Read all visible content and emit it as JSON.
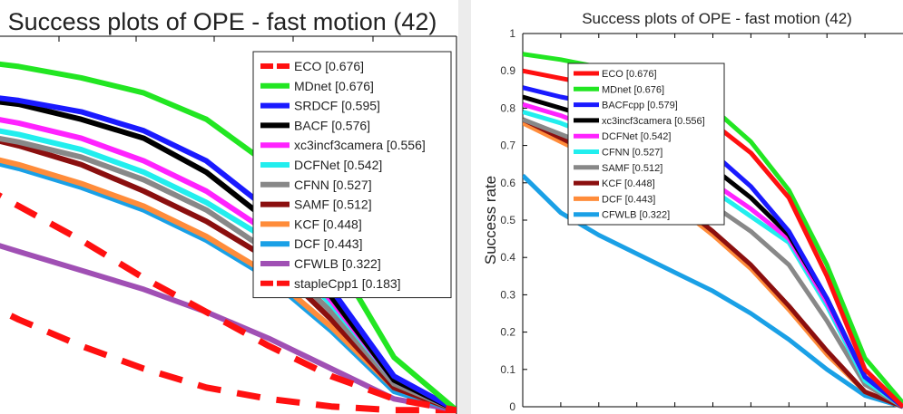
{
  "chart_data": [
    {
      "type": "line",
      "title": "Success plots of OPE - fast motion (42)",
      "xlabel": "",
      "ylabel": "",
      "legend_position": "top-right",
      "grid": false,
      "series": [
        {
          "name": "ECO [0.676]",
          "color": "#ff1010",
          "dash": true,
          "x": [
            0.0,
            0.1,
            0.2,
            0.3,
            0.4,
            0.5,
            0.6,
            0.7,
            0.8,
            0.9,
            1.0
          ],
          "values": [
            0.74,
            0.7,
            0.63,
            0.54,
            0.45,
            0.35,
            0.26,
            0.17,
            0.09,
            0.03,
            0.0
          ]
        },
        {
          "name": "MDnet [0.676]",
          "color": "#22e622",
          "x": [
            0.0,
            0.1,
            0.2,
            0.3,
            0.4,
            0.5,
            0.6,
            0.7,
            0.8,
            0.9,
            1.0
          ],
          "values": [
            0.95,
            0.94,
            0.93,
            0.91,
            0.88,
            0.84,
            0.77,
            0.65,
            0.42,
            0.14,
            0.0
          ]
        },
        {
          "name": "SRDCF [0.595]",
          "color": "#1a1aff",
          "x": [
            0.0,
            0.1,
            0.2,
            0.3,
            0.4,
            0.5,
            0.6,
            0.7,
            0.8,
            0.9,
            1.0
          ],
          "values": [
            0.86,
            0.85,
            0.84,
            0.82,
            0.79,
            0.74,
            0.66,
            0.53,
            0.32,
            0.09,
            0.0
          ]
        },
        {
          "name": "BACF [0.576]",
          "color": "#000000",
          "x": [
            0.0,
            0.1,
            0.2,
            0.3,
            0.4,
            0.5,
            0.6,
            0.7,
            0.8,
            0.9,
            1.0
          ],
          "values": [
            0.85,
            0.84,
            0.83,
            0.81,
            0.77,
            0.72,
            0.63,
            0.5,
            0.3,
            0.08,
            0.0
          ]
        },
        {
          "name": "xc3incf3camera [0.556]",
          "color": "#ff22ff",
          "x": [
            0.0,
            0.1,
            0.2,
            0.3,
            0.4,
            0.5,
            0.6,
            0.7,
            0.8,
            0.9,
            1.0
          ],
          "values": [
            0.82,
            0.81,
            0.79,
            0.76,
            0.72,
            0.66,
            0.58,
            0.47,
            0.29,
            0.08,
            0.0
          ]
        },
        {
          "name": "DCFNet [0.542]",
          "color": "#22eeee",
          "x": [
            0.0,
            0.1,
            0.2,
            0.3,
            0.4,
            0.5,
            0.6,
            0.7,
            0.8,
            0.9,
            1.0
          ],
          "values": [
            0.79,
            0.78,
            0.76,
            0.73,
            0.69,
            0.63,
            0.55,
            0.45,
            0.28,
            0.08,
            0.0
          ]
        },
        {
          "name": "CFNN [0.527]",
          "color": "#888888",
          "x": [
            0.0,
            0.1,
            0.2,
            0.3,
            0.4,
            0.5,
            0.6,
            0.7,
            0.8,
            0.9,
            1.0
          ],
          "values": [
            0.77,
            0.76,
            0.74,
            0.71,
            0.67,
            0.61,
            0.53,
            0.42,
            0.26,
            0.07,
            0.0
          ]
        },
        {
          "name": "SAMF [0.512]",
          "color": "#8b0f0f",
          "x": [
            0.0,
            0.1,
            0.2,
            0.3,
            0.4,
            0.5,
            0.6,
            0.7,
            0.8,
            0.9,
            1.0
          ],
          "values": [
            0.79,
            0.77,
            0.74,
            0.7,
            0.65,
            0.58,
            0.5,
            0.4,
            0.24,
            0.06,
            0.0
          ]
        },
        {
          "name": "KCF [0.448]",
          "color": "#ff8c3a",
          "x": [
            0.0,
            0.1,
            0.2,
            0.3,
            0.4,
            0.5,
            0.6,
            0.7,
            0.8,
            0.9,
            1.0
          ],
          "values": [
            0.74,
            0.72,
            0.69,
            0.65,
            0.6,
            0.54,
            0.46,
            0.36,
            0.22,
            0.06,
            0.0
          ]
        },
        {
          "name": "DCF [0.443]",
          "color": "#1aa0e6",
          "x": [
            0.0,
            0.1,
            0.2,
            0.3,
            0.4,
            0.5,
            0.6,
            0.7,
            0.8,
            0.9,
            1.0
          ],
          "values": [
            0.73,
            0.71,
            0.68,
            0.64,
            0.59,
            0.53,
            0.45,
            0.35,
            0.21,
            0.05,
            0.0
          ]
        },
        {
          "name": "CFWLB [0.322]",
          "color": "#a050b4",
          "x": [
            0.0,
            0.1,
            0.2,
            0.3,
            0.4,
            0.5,
            0.6,
            0.7,
            0.8,
            0.9,
            1.0
          ],
          "values": [
            0.58,
            0.52,
            0.47,
            0.42,
            0.37,
            0.32,
            0.26,
            0.19,
            0.11,
            0.03,
            0.0
          ]
        },
        {
          "name": "stapleCpp1 [0.183]",
          "color": "#ff1010",
          "dash": true,
          "x": [
            0.0,
            0.1,
            0.2,
            0.3,
            0.4,
            0.5,
            0.6,
            0.7,
            0.8,
            0.9,
            1.0
          ],
          "values": [
            0.48,
            0.4,
            0.32,
            0.24,
            0.17,
            0.11,
            0.06,
            0.03,
            0.01,
            0.0,
            0.0
          ]
        }
      ]
    },
    {
      "type": "line",
      "title": "Success plots of OPE - fast motion (42)",
      "xlabel": "",
      "ylabel": "Success rate",
      "xlim": [
        0,
        1
      ],
      "ylim": [
        0,
        1
      ],
      "yticks": [
        "0",
        "0.1",
        "0.2",
        "0.3",
        "0.4",
        "0.5",
        "0.6",
        "0.7",
        "0.8",
        "0.9",
        "1"
      ],
      "legend_position": "top-left",
      "grid": false,
      "series": [
        {
          "name": "ECO [0.676]",
          "color": "#ff1010",
          "x": [
            0.0,
            0.1,
            0.2,
            0.3,
            0.4,
            0.5,
            0.6,
            0.7,
            0.8,
            0.9,
            1.0
          ],
          "values": [
            0.9,
            0.88,
            0.86,
            0.83,
            0.8,
            0.76,
            0.68,
            0.56,
            0.35,
            0.1,
            0.0
          ]
        },
        {
          "name": "MDnet [0.676]",
          "color": "#22e622",
          "x": [
            0.0,
            0.1,
            0.2,
            0.3,
            0.4,
            0.5,
            0.6,
            0.7,
            0.8,
            0.9,
            1.0
          ],
          "values": [
            0.945,
            0.93,
            0.91,
            0.88,
            0.85,
            0.8,
            0.71,
            0.58,
            0.38,
            0.13,
            0.01
          ]
        },
        {
          "name": "BACFcpp [0.579]",
          "color": "#1a1aff",
          "x": [
            0.0,
            0.1,
            0.2,
            0.3,
            0.4,
            0.5,
            0.6,
            0.7,
            0.8,
            0.9,
            1.0
          ],
          "values": [
            0.855,
            0.83,
            0.81,
            0.78,
            0.74,
            0.68,
            0.59,
            0.47,
            0.29,
            0.08,
            0.0
          ]
        },
        {
          "name": "xc3incf3camera [0.556]",
          "color": "#000000",
          "x": [
            0.0,
            0.1,
            0.2,
            0.3,
            0.4,
            0.5,
            0.6,
            0.7,
            0.8,
            0.9,
            1.0
          ],
          "values": [
            0.83,
            0.8,
            0.77,
            0.73,
            0.69,
            0.64,
            0.56,
            0.46,
            0.29,
            0.08,
            0.0
          ]
        },
        {
          "name": "DCFNet [0.542]",
          "color": "#ff22ff",
          "x": [
            0.0,
            0.1,
            0.2,
            0.3,
            0.4,
            0.5,
            0.6,
            0.7,
            0.8,
            0.9,
            1.0
          ],
          "values": [
            0.81,
            0.78,
            0.74,
            0.7,
            0.66,
            0.6,
            0.53,
            0.45,
            0.28,
            0.08,
            0.0
          ]
        },
        {
          "name": "CFNN [0.527]",
          "color": "#22eeee",
          "x": [
            0.0,
            0.1,
            0.2,
            0.3,
            0.4,
            0.5,
            0.6,
            0.7,
            0.8,
            0.9,
            1.0
          ],
          "values": [
            0.79,
            0.76,
            0.72,
            0.68,
            0.64,
            0.58,
            0.51,
            0.44,
            0.27,
            0.07,
            0.0
          ]
        },
        {
          "name": "SAMF [0.512]",
          "color": "#888888",
          "x": [
            0.0,
            0.1,
            0.2,
            0.3,
            0.4,
            0.5,
            0.6,
            0.7,
            0.8,
            0.9,
            1.0
          ],
          "values": [
            0.77,
            0.73,
            0.69,
            0.65,
            0.6,
            0.54,
            0.47,
            0.38,
            0.23,
            0.06,
            0.0
          ]
        },
        {
          "name": "KCF [0.448]",
          "color": "#8b0f0f",
          "x": [
            0.0,
            0.1,
            0.2,
            0.3,
            0.4,
            0.5,
            0.6,
            0.7,
            0.8,
            0.9,
            1.0
          ],
          "values": [
            0.77,
            0.72,
            0.67,
            0.61,
            0.55,
            0.47,
            0.38,
            0.27,
            0.15,
            0.04,
            0.0
          ]
        },
        {
          "name": "DCF [0.443]",
          "color": "#ff8c3a",
          "x": [
            0.0,
            0.1,
            0.2,
            0.3,
            0.4,
            0.5,
            0.6,
            0.7,
            0.8,
            0.9,
            1.0
          ],
          "values": [
            0.76,
            0.71,
            0.66,
            0.6,
            0.54,
            0.46,
            0.37,
            0.26,
            0.14,
            0.04,
            0.0
          ]
        },
        {
          "name": "CFWLB [0.322]",
          "color": "#1aa0e6",
          "x": [
            0.0,
            0.1,
            0.2,
            0.3,
            0.4,
            0.5,
            0.6,
            0.7,
            0.8,
            0.9,
            1.0
          ],
          "values": [
            0.62,
            0.52,
            0.46,
            0.41,
            0.36,
            0.31,
            0.25,
            0.18,
            0.1,
            0.03,
            0.0
          ]
        }
      ]
    }
  ]
}
